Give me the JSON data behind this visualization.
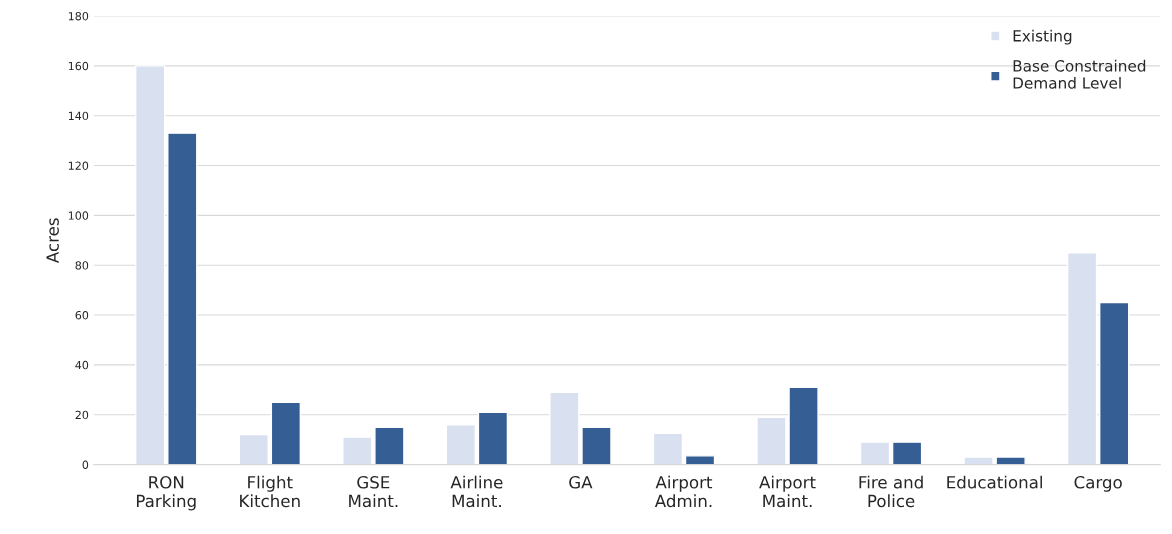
{
  "chart_data": {
    "type": "bar",
    "ylabel": "Acres",
    "categories": [
      "RON\nParking",
      "Flight\nKitchen",
      "GSE\nMaint.",
      "Airline\nMaint.",
      "GA",
      "Airport\nAdmin.",
      "Airport\nMaint.",
      "Fire and\nPolice",
      "Educational",
      "Cargo"
    ],
    "series": [
      {
        "name": "Existing",
        "color": "#d9e1f0",
        "values": [
          160,
          12,
          11,
          16,
          29,
          12.5,
          19,
          9,
          3,
          85
        ]
      },
      {
        "name": "Base Constrained\nDemand Level",
        "color": "#355f94",
        "values": [
          133,
          25,
          15,
          21,
          15,
          3.5,
          31,
          9,
          3,
          65
        ]
      }
    ],
    "ylim": [
      0,
      180
    ],
    "yticks": [
      0,
      20,
      40,
      60,
      80,
      100,
      120,
      140,
      160,
      180
    ],
    "grid": "y",
    "legend": "top right"
  }
}
